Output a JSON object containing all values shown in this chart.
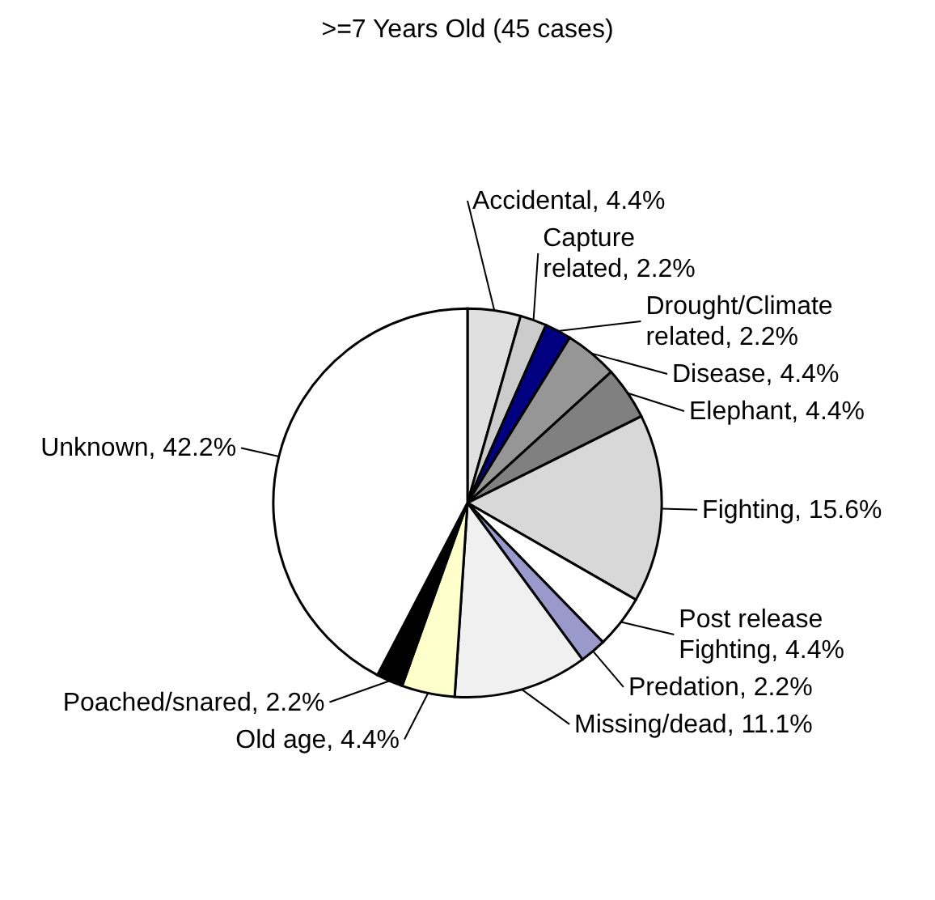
{
  "chart_data": {
    "type": "pie",
    "title": ">=7 Years Old (45 cases)",
    "categories": [
      "Accidental",
      "Capture related",
      "Drought/Climate related",
      "Disease",
      "Elephant",
      "Fighting",
      "Post release Fighting",
      "Predation",
      "Missing/dead",
      "Old age",
      "Poached/snared",
      "Unknown"
    ],
    "values": [
      4.4,
      2.2,
      2.2,
      4.4,
      4.4,
      15.6,
      4.4,
      2.2,
      11.1,
      4.4,
      2.2,
      42.2
    ],
    "value_labels": [
      "4.4%",
      "2.2%",
      "2.2%",
      "4.4%",
      "4.4%",
      "15.6%",
      "4.4%",
      "2.2%",
      "11.1%",
      "4.4%",
      "2.2%",
      "42.2%"
    ],
    "colors": [
      "#e0e0e0",
      "#cccccc",
      "#000080",
      "#969696",
      "#808080",
      "#d8d8d8",
      "#ffffff",
      "#9999cc",
      "#f0f0f0",
      "#ffffcc",
      "#000000",
      "#ffffff"
    ]
  }
}
